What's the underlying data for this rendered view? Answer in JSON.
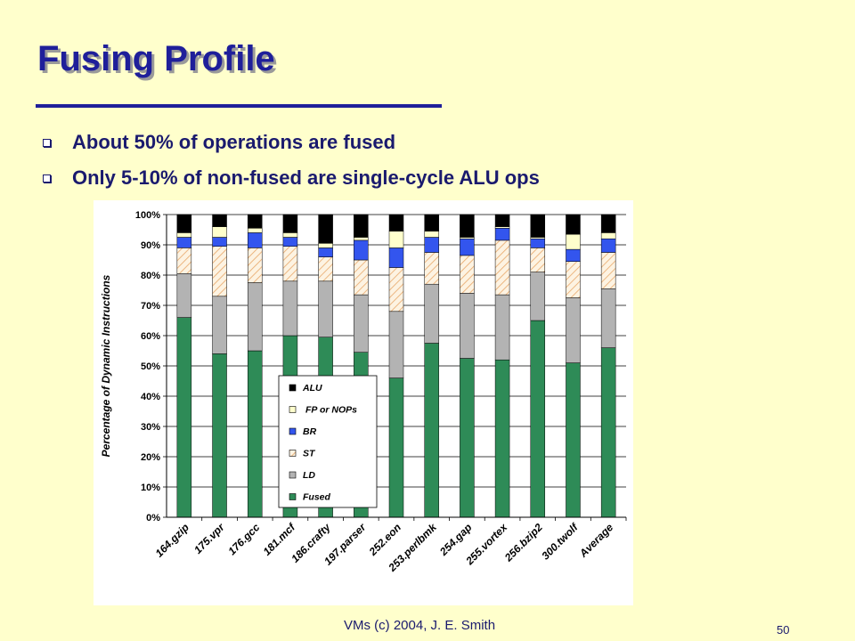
{
  "slide": {
    "title": "Fusing Profile",
    "bullets": [
      "About 50% of operations are fused",
      "Only 5-10% of non-fused are single-cycle ALU ops"
    ],
    "footer": "VMs (c) 2004, J. E. Smith",
    "page_number": "50"
  },
  "chart_data": {
    "type": "bar",
    "stacked": true,
    "ylabel": "Percentage of Dynamic Instructions",
    "ylim": [
      0,
      100
    ],
    "y_ticks": [
      "0%",
      "10%",
      "20%",
      "30%",
      "40%",
      "50%",
      "60%",
      "70%",
      "80%",
      "90%",
      "100%"
    ],
    "grid": true,
    "legend_placement": "center",
    "categories": [
      "164.gzip",
      "175.vpr",
      "176.gcc",
      "181.mcf",
      "186.crafty",
      "197.parser",
      "252.eon",
      "253.perlbmk",
      "254.gap",
      "255.vortex",
      "256.bzip2",
      "300.twolf",
      "Average"
    ],
    "series": [
      {
        "name": "Fused",
        "color": "#2e8b57",
        "values": [
          66,
          54,
          55,
          60,
          59.5,
          54.5,
          46,
          57.5,
          52.5,
          52,
          65,
          51,
          56
        ]
      },
      {
        "name": "LD",
        "color": "#b3b3b3",
        "values": [
          14.5,
          19,
          22.5,
          18,
          18.5,
          19,
          22,
          19.5,
          21.5,
          21.5,
          16,
          21.5,
          19.5
        ]
      },
      {
        "name": "ST",
        "color": "#fbe3c0",
        "values": [
          8.5,
          16.5,
          11.5,
          11.5,
          8,
          11.5,
          14.5,
          10.5,
          12.5,
          18,
          8,
          12,
          12
        ]
      },
      {
        "name": "BR",
        "color": "#3355ee",
        "values": [
          3.5,
          3,
          5,
          3,
          3,
          6.5,
          6.5,
          5,
          5.5,
          4,
          3,
          4,
          4.5
        ]
      },
      {
        "name": "FP or NOPs",
        "color": "#ffffcc",
        "values": [
          1.5,
          3.5,
          1.5,
          1.5,
          1.5,
          1,
          5.5,
          2,
          0.5,
          0.5,
          0.5,
          5,
          2
        ]
      },
      {
        "name": "ALU",
        "color": "#000000",
        "values": [
          6,
          4,
          4.5,
          6,
          9.5,
          7.5,
          5.5,
          5.5,
          7.5,
          4,
          7.5,
          6.5,
          6
        ]
      }
    ]
  }
}
